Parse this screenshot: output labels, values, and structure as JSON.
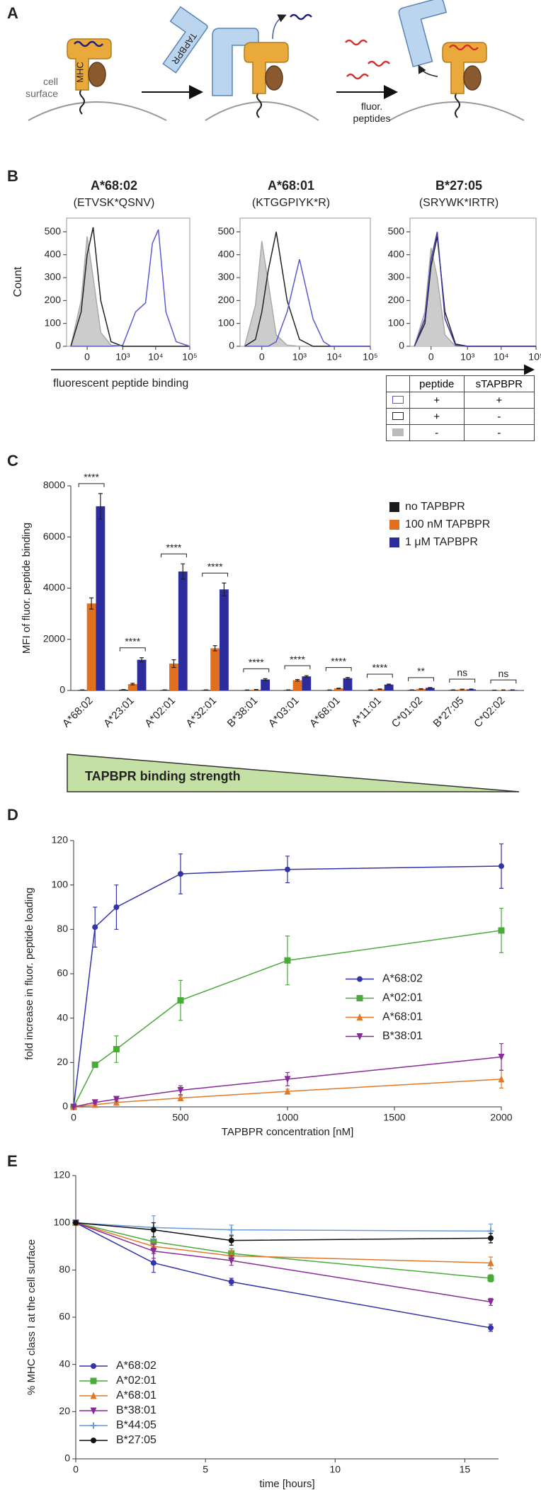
{
  "panel_labels": [
    "A",
    "B",
    "C",
    "D",
    "E"
  ],
  "diagram": {
    "cell_label": "cell surface",
    "mhc_label": "MHC",
    "tapbpr_label": "TAPBPR",
    "peptide_label": "fluor. peptides"
  },
  "panel_b": {
    "y_label": "Count",
    "x_label": "fluorescent peptide binding",
    "legend_table": {
      "headers": [
        "peptide",
        "sTAPBPR"
      ],
      "rows": [
        [
          "+",
          "+"
        ],
        [
          "+",
          "-"
        ],
        [
          "-",
          "-"
        ]
      ]
    }
  },
  "chart_data": [
    {
      "type": "line",
      "title": "A*68:02",
      "subtitle": "(ETVSK*QSNV)",
      "xscale": "biexponential",
      "frame": true,
      "x": [
        -200,
        -50,
        0,
        50,
        150,
        400,
        1000,
        2500,
        5000,
        8000,
        12000,
        20000,
        40000,
        100000
      ],
      "xlim": [
        -300,
        100000
      ],
      "xticks": [
        0,
        {
          "value": 1000,
          "label": "10³"
        },
        {
          "value": 10000,
          "label": "10⁴"
        },
        {
          "value": 100000,
          "label": "10⁵"
        }
      ],
      "ylim": [
        0,
        560
      ],
      "yticks": [
        0,
        100,
        200,
        300,
        400,
        500
      ],
      "series": [
        {
          "color": "#aaaaaa",
          "fill": "#cccccc",
          "values": [
            0,
            200,
            480,
            300,
            60,
            5,
            0,
            0,
            0,
            0,
            0,
            0,
            0,
            0
          ]
        },
        {
          "color": "#222222",
          "values": [
            0,
            150,
            400,
            520,
            200,
            20,
            0,
            0,
            0,
            0,
            0,
            0,
            0,
            0
          ]
        },
        {
          "color": "#5a5ad0",
          "values": [
            0,
            0,
            0,
            0,
            0,
            0,
            5,
            150,
            190,
            450,
            510,
            150,
            20,
            0
          ]
        }
      ]
    },
    {
      "type": "line",
      "title": "A*68:01",
      "subtitle": "(KTGGPIYK*R)",
      "xscale": "biexponential",
      "frame": true,
      "x": [
        -200,
        -50,
        0,
        50,
        150,
        400,
        1000,
        2500,
        5000,
        8000,
        12000,
        20000,
        40000,
        100000
      ],
      "xlim": [
        -300,
        100000
      ],
      "xticks": [
        0,
        {
          "value": 1000,
          "label": "10³"
        },
        {
          "value": 10000,
          "label": "10⁴"
        },
        {
          "value": 100000,
          "label": "10⁵"
        }
      ],
      "ylim": [
        0,
        560
      ],
      "yticks": [
        0,
        100,
        200,
        300,
        400,
        500
      ],
      "series": [
        {
          "color": "#aaaaaa",
          "fill": "#cccccc",
          "values": [
            0,
            180,
            460,
            280,
            50,
            5,
            0,
            0,
            0,
            0,
            0,
            0,
            0,
            0
          ]
        },
        {
          "color": "#222222",
          "values": [
            0,
            30,
            150,
            330,
            500,
            200,
            30,
            0,
            0,
            0,
            0,
            0,
            0,
            0
          ]
        },
        {
          "color": "#5a5ad0",
          "values": [
            0,
            0,
            0,
            0,
            20,
            150,
            380,
            120,
            20,
            0,
            0,
            0,
            0,
            0
          ]
        }
      ]
    },
    {
      "type": "line",
      "title": "B*27:05",
      "subtitle": "(SRYWK*IRTR)",
      "xscale": "biexponential",
      "frame": true,
      "x": [
        -200,
        -50,
        0,
        50,
        150,
        400,
        1000,
        2500,
        5000,
        8000,
        12000,
        20000,
        40000,
        100000
      ],
      "xlim": [
        -300,
        100000
      ],
      "xticks": [
        0,
        {
          "value": 1000,
          "label": "10³"
        },
        {
          "value": 10000,
          "label": "10⁴"
        },
        {
          "value": 100000,
          "label": "10⁵"
        }
      ],
      "ylim": [
        0,
        560
      ],
      "yticks": [
        0,
        100,
        200,
        300,
        400,
        500
      ],
      "series": [
        {
          "color": "#aaaaaa",
          "fill": "#cccccc",
          "values": [
            0,
            150,
            430,
            300,
            50,
            0,
            0,
            0,
            0,
            0,
            0,
            0,
            0,
            0
          ]
        },
        {
          "color": "#222222",
          "values": [
            0,
            100,
            350,
            480,
            150,
            10,
            0,
            0,
            0,
            0,
            0,
            0,
            0,
            0
          ]
        },
        {
          "color": "#3a3aa0",
          "values": [
            0,
            120,
            380,
            500,
            120,
            5,
            0,
            0,
            0,
            0,
            0,
            0,
            0,
            0
          ]
        }
      ]
    },
    {
      "type": "bar",
      "y_label": "MFI of fluor. peptide binding",
      "annotation": "TAPBPR binding strength",
      "legend": "upper right",
      "categories": [
        "A*68:02",
        "A*23:01",
        "A*02:01",
        "A*32:01",
        "B*38:01",
        "A*03:01",
        "A*68:01",
        "A*11:01",
        "C*01:02",
        "B*27:05",
        "C*02:02"
      ],
      "significance": [
        "****",
        "****",
        "****",
        "****",
        "****",
        "****",
        "****",
        "****",
        "**",
        "ns",
        "ns"
      ],
      "ylim": [
        0,
        8000
      ],
      "yticks": [
        0,
        2000,
        4000,
        6000,
        8000
      ],
      "series": [
        {
          "name": "no TAPBPR",
          "color": "#1a1a1a",
          "values": [
            20,
            30,
            20,
            20,
            15,
            20,
            15,
            15,
            20,
            20,
            10
          ],
          "errors": [
            5,
            5,
            5,
            5,
            5,
            5,
            5,
            5,
            5,
            5,
            5
          ]
        },
        {
          "name": "100 nM TAPBPR",
          "color": "#e07020",
          "values": [
            3400,
            250,
            1050,
            1650,
            30,
            400,
            80,
            50,
            60,
            40,
            15
          ],
          "errors": [
            220,
            30,
            150,
            100,
            10,
            30,
            10,
            10,
            10,
            10,
            5
          ]
        },
        {
          "name": "1 μM TAPBPR",
          "color": "#2c2c9c",
          "values": [
            7200,
            1200,
            4650,
            3950,
            430,
            550,
            480,
            230,
            100,
            45,
            20
          ],
          "errors": [
            500,
            80,
            300,
            250,
            30,
            30,
            30,
            20,
            15,
            10,
            5
          ]
        }
      ]
    },
    {
      "type": "line",
      "x_label": "TAPBPR concentration [nM]",
      "y_label": "fold increase in fluor. peptide loading",
      "legend": "right",
      "x": [
        0,
        100,
        200,
        500,
        1000,
        2000
      ],
      "xlim": [
        0,
        2000
      ],
      "xticks": [
        0,
        500,
        1000,
        1500,
        2000
      ],
      "ylim": [
        0,
        120
      ],
      "yticks": [
        0,
        20,
        40,
        60,
        80,
        100,
        120
      ],
      "series": [
        {
          "name": "A*68:02",
          "color": "#3333aa",
          "marker": "circle",
          "values": [
            0,
            81,
            90,
            105,
            107,
            108.5
          ],
          "errors": [
            0,
            9,
            10,
            9,
            6,
            10
          ]
        },
        {
          "name": "A*02:01",
          "color": "#4aaa3a",
          "marker": "square",
          "values": [
            0,
            19,
            26,
            48,
            66,
            79.5
          ],
          "errors": [
            0,
            1,
            6,
            9,
            11,
            10
          ]
        },
        {
          "name": "A*68:01",
          "color": "#e07a2a",
          "marker": "triangle",
          "values": [
            0,
            1,
            2,
            4,
            7,
            12.5
          ],
          "errors": [
            0,
            0.5,
            1,
            1,
            1,
            4
          ]
        },
        {
          "name": "B*38:01",
          "color": "#8a2a9a",
          "marker": "triangle-down",
          "values": [
            0,
            2,
            3.5,
            7.5,
            12.5,
            22.5
          ],
          "errors": [
            0,
            0.5,
            1,
            2,
            3,
            6
          ]
        }
      ]
    },
    {
      "type": "line",
      "x_label": "time [hours]",
      "y_label": "% MHC class I at the cell surface",
      "legend": "lower left",
      "x": [
        0,
        3,
        6,
        16
      ],
      "xlim": [
        0,
        16.3
      ],
      "xticks": [
        0,
        5,
        10,
        15
      ],
      "ylim": [
        0,
        120
      ],
      "yticks": [
        0,
        20,
        40,
        60,
        80,
        100,
        120
      ],
      "series": [
        {
          "name": "A*68:02",
          "color": "#3333aa",
          "marker": "circle",
          "values": [
            100,
            83,
            75,
            55.5
          ],
          "errors": [
            0,
            4,
            1.5,
            1.5
          ]
        },
        {
          "name": "A*02:01",
          "color": "#4aaa3a",
          "marker": "square",
          "values": [
            100,
            92,
            87,
            76.5
          ],
          "errors": [
            0,
            2,
            2,
            1.5
          ]
        },
        {
          "name": "A*68:01",
          "color": "#e07a2a",
          "marker": "triangle",
          "values": [
            100,
            90,
            86,
            83
          ],
          "errors": [
            0,
            2,
            2,
            2.5
          ]
        },
        {
          "name": "B*38:01",
          "color": "#8a2a9a",
          "marker": "triangle-down",
          "values": [
            100,
            88,
            84,
            66.5
          ],
          "errors": [
            0,
            3,
            2,
            1.5
          ]
        },
        {
          "name": "B*44:05",
          "color": "#6a9ad8",
          "marker": "plus",
          "values": [
            100,
            98,
            97,
            96.5
          ],
          "errors": [
            0,
            5,
            2,
            3
          ]
        },
        {
          "name": "B*27:05",
          "color": "#111111",
          "marker": "circle",
          "values": [
            100,
            97,
            92.5,
            93.5
          ],
          "errors": [
            0,
            3,
            2,
            2
          ]
        }
      ]
    }
  ]
}
